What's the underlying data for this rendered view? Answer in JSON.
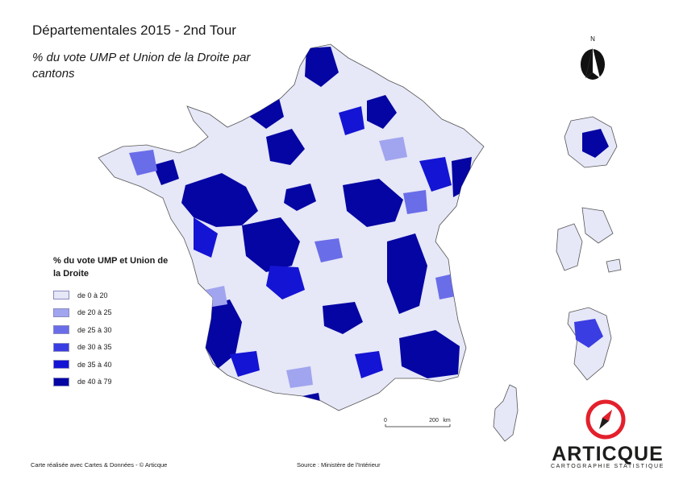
{
  "title": "Départementales 2015 - 2nd Tour",
  "subtitle": "% du vote UMP et Union de la Droite par cantons",
  "north_label": "N",
  "legend": {
    "title": "% du vote UMP et Union de la Droite",
    "classes": [
      {
        "label": "de 0 à 20",
        "color": "#e6e7f7"
      },
      {
        "label": "de 20 à 25",
        "color": "#a1a4ee"
      },
      {
        "label": "de 25 à 30",
        "color": "#6a6de8"
      },
      {
        "label": "de 30 à 35",
        "color": "#3a3de2"
      },
      {
        "label": "de 35 à 40",
        "color": "#1414d4"
      },
      {
        "label": "de 40 à 79",
        "color": "#0505a3"
      }
    ]
  },
  "scale": {
    "start": "0",
    "end": "200",
    "unit": "km"
  },
  "footer": {
    "credit": "Carte réalisée avec Cartes & Données - © Articque",
    "source": "Source : Ministère de l'Intérieur"
  },
  "brand": {
    "name": "ARTICQUE",
    "tagline": "CARTOGRAPHIE STATISTIQUE",
    "logo_color": "#e3202c"
  },
  "icons": [
    "north-arrow-icon",
    "compass-logo-icon"
  ]
}
